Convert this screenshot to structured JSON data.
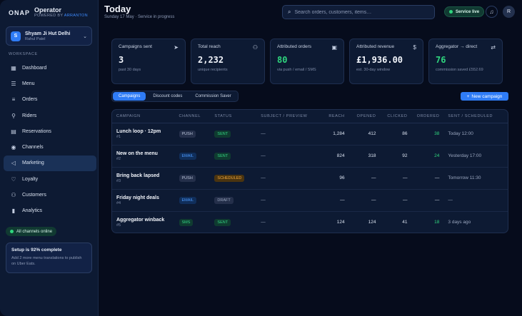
{
  "brand": {
    "logo": "ONAP",
    "title": "Operator",
    "powered_prefix": "POWERED BY",
    "powered_by": "ARRANTON"
  },
  "workspace": {
    "initial": "S",
    "name": "Shyam Ji Hut Delhi",
    "user": "Rahul Patel"
  },
  "sidebar": {
    "section_label": "WORKSPACE",
    "items": [
      {
        "label": "Dashboard",
        "icon": "grid-icon"
      },
      {
        "label": "Menu",
        "icon": "menu-icon"
      },
      {
        "label": "Orders",
        "icon": "list-icon"
      },
      {
        "label": "Riders",
        "icon": "bike-icon"
      },
      {
        "label": "Reservations",
        "icon": "calendar-icon"
      },
      {
        "label": "Channels",
        "icon": "broadcast-icon"
      },
      {
        "label": "Marketing",
        "icon": "megaphone-icon",
        "active": true
      },
      {
        "label": "Loyalty",
        "icon": "heart-icon"
      },
      {
        "label": "Customers",
        "icon": "users-icon"
      },
      {
        "label": "Analytics",
        "icon": "bar-chart-icon"
      }
    ],
    "channels_status": "All channels online",
    "setup": {
      "title": "Setup is 92% complete",
      "progress": 0.92,
      "description": "Add 2 more menu translations to publish on Uber Eats."
    }
  },
  "header": {
    "title": "Today",
    "subtitle": "Sunday 17 May · Service in progress",
    "search_placeholder": "Search orders, customers, items…",
    "service_status": "Service live",
    "avatar_initial": "R"
  },
  "stats": [
    {
      "label": "Campaigns sent",
      "icon": "send-icon",
      "value": "3",
      "note": "past 30 days",
      "green": false
    },
    {
      "label": "Total reach",
      "icon": "users-icon",
      "value": "2,232",
      "note": "unique recipients",
      "green": false
    },
    {
      "label": "Attributed orders",
      "icon": "clipboard-icon",
      "value": "80",
      "note": "via push / email / SMS",
      "green": true
    },
    {
      "label": "Attributed revenue",
      "icon": "dollar-icon",
      "value": "£1,936.00",
      "note": "est. 30-day window",
      "green": false
    },
    {
      "label": "Aggregator → direct",
      "icon": "swap-icon",
      "value": "76",
      "note": "commission saved £552.69",
      "green": true
    }
  ],
  "tabs": [
    {
      "label": "Campaigns",
      "active": true
    },
    {
      "label": "Discount codes",
      "active": false
    },
    {
      "label": "Commission Saver",
      "active": false
    }
  ],
  "new_campaign_label": "New campaign",
  "table": {
    "columns": [
      "CAMPAIGN",
      "CHANNEL",
      "STATUS",
      "SUBJECT / PREVIEW",
      "REACH",
      "OPENED",
      "CLICKED",
      "ORDERED",
      "SENT / SCHEDULED"
    ],
    "rows": [
      {
        "name": "Lunch loop · 12pm",
        "id": "#1",
        "channel": "PUSH",
        "status": "SENT",
        "subject": "—",
        "reach": "1,284",
        "opened": "412",
        "clicked": "86",
        "ordered": "38",
        "when": "Today 12:00"
      },
      {
        "name": "New on the menu",
        "id": "#2",
        "channel": "EMAIL",
        "status": "SENT",
        "subject": "—",
        "reach": "824",
        "opened": "318",
        "clicked": "92",
        "ordered": "24",
        "when": "Yesterday 17:00"
      },
      {
        "name": "Bring back lapsed",
        "id": "#3",
        "channel": "PUSH",
        "status": "SCHEDULED",
        "subject": "—",
        "reach": "96",
        "opened": "—",
        "clicked": "—",
        "ordered": "—",
        "when": "Tomorrow 11:30"
      },
      {
        "name": "Friday night deals",
        "id": "#4",
        "channel": "EMAIL",
        "status": "DRAFT",
        "subject": "—",
        "reach": "—",
        "opened": "—",
        "clicked": "—",
        "ordered": "—",
        "when": "—"
      },
      {
        "name": "Aggregator winback",
        "id": "#5",
        "channel": "SMS",
        "status": "SENT",
        "subject": "—",
        "reach": "124",
        "opened": "124",
        "clicked": "41",
        "ordered": "18",
        "when": "3 days ago"
      }
    ]
  }
}
